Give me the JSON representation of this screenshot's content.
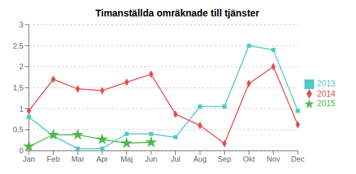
{
  "chart_data": {
    "type": "line",
    "title": "Timanställda omräknade till tjänster",
    "categories": [
      "Jan",
      "Feb",
      "Mar",
      "Apr",
      "Maj",
      "Jun",
      "Jul",
      "Aug",
      "Sep",
      "Okt",
      "Nov",
      "Dec"
    ],
    "series": [
      {
        "name": "2013",
        "color": "#4EC9C4",
        "marker": "square",
        "values": [
          0.8,
          0.35,
          0.05,
          0.05,
          0.4,
          0.4,
          0.32,
          1.05,
          1.05,
          2.5,
          2.4,
          0.95
        ]
      },
      {
        "name": "2014",
        "color": "#E05050",
        "marker": "diamond",
        "values": [
          0.95,
          1.7,
          1.47,
          1.43,
          1.63,
          1.82,
          0.87,
          0.6,
          0.17,
          1.6,
          2.0,
          0.62
        ]
      },
      {
        "name": "2015",
        "color": "#4DB84D",
        "marker": "star",
        "values": [
          0.1,
          0.38,
          0.38,
          0.27,
          0.18,
          0.2,
          null,
          null,
          null,
          null,
          null,
          null
        ]
      }
    ],
    "ylim": [
      0,
      3
    ],
    "yticks": [
      0,
      {
        "value": 0.5,
        "label": "0,5"
      },
      1,
      {
        "value": 1.5,
        "label": "1,5"
      },
      2,
      {
        "value": 2.5,
        "label": "2,5"
      },
      3
    ],
    "grid": true,
    "legend": "right"
  }
}
